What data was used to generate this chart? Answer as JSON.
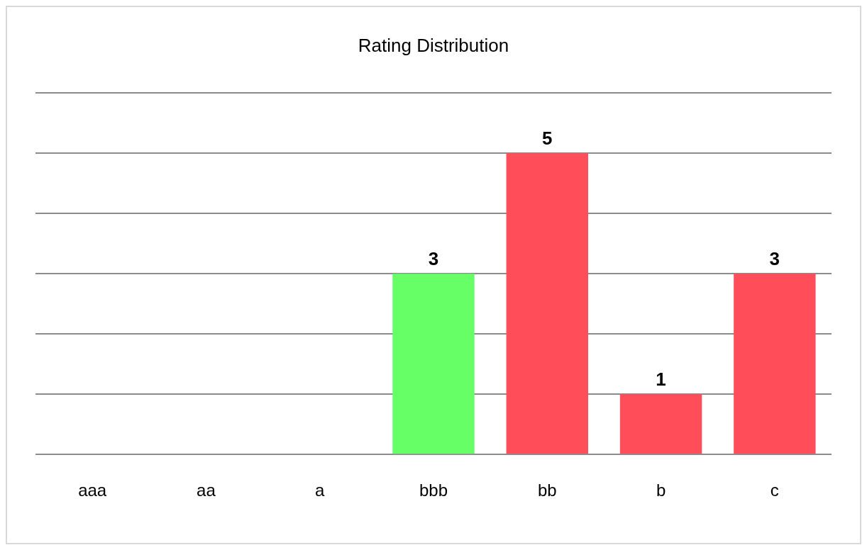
{
  "chart_data": {
    "type": "bar",
    "title": "Rating Distribution",
    "categories": [
      "aaa",
      "aa",
      "a",
      "bbb",
      "bb",
      "b",
      "c"
    ],
    "values": [
      0,
      0,
      0,
      3,
      5,
      1,
      3
    ],
    "colors": [
      "#ff4d5a",
      "#ff4d5a",
      "#ff4d5a",
      "#66ff66",
      "#ff4d5a",
      "#ff4d5a",
      "#ff4d5a"
    ],
    "value_labels": [
      null,
      null,
      null,
      "3",
      "5",
      "1",
      "3"
    ],
    "ylim": [
      0,
      6
    ],
    "yticks": [
      {
        "value": 0,
        "label": null
      },
      {
        "value": 1,
        "label": null
      },
      {
        "value": 2,
        "label": null
      },
      {
        "value": 3,
        "label": null
      },
      {
        "value": 4,
        "label": null
      },
      {
        "value": 5,
        "label": null
      },
      {
        "value": 6,
        "label": null
      }
    ],
    "grid": "y",
    "tick_labels": "x",
    "legend": false
  }
}
